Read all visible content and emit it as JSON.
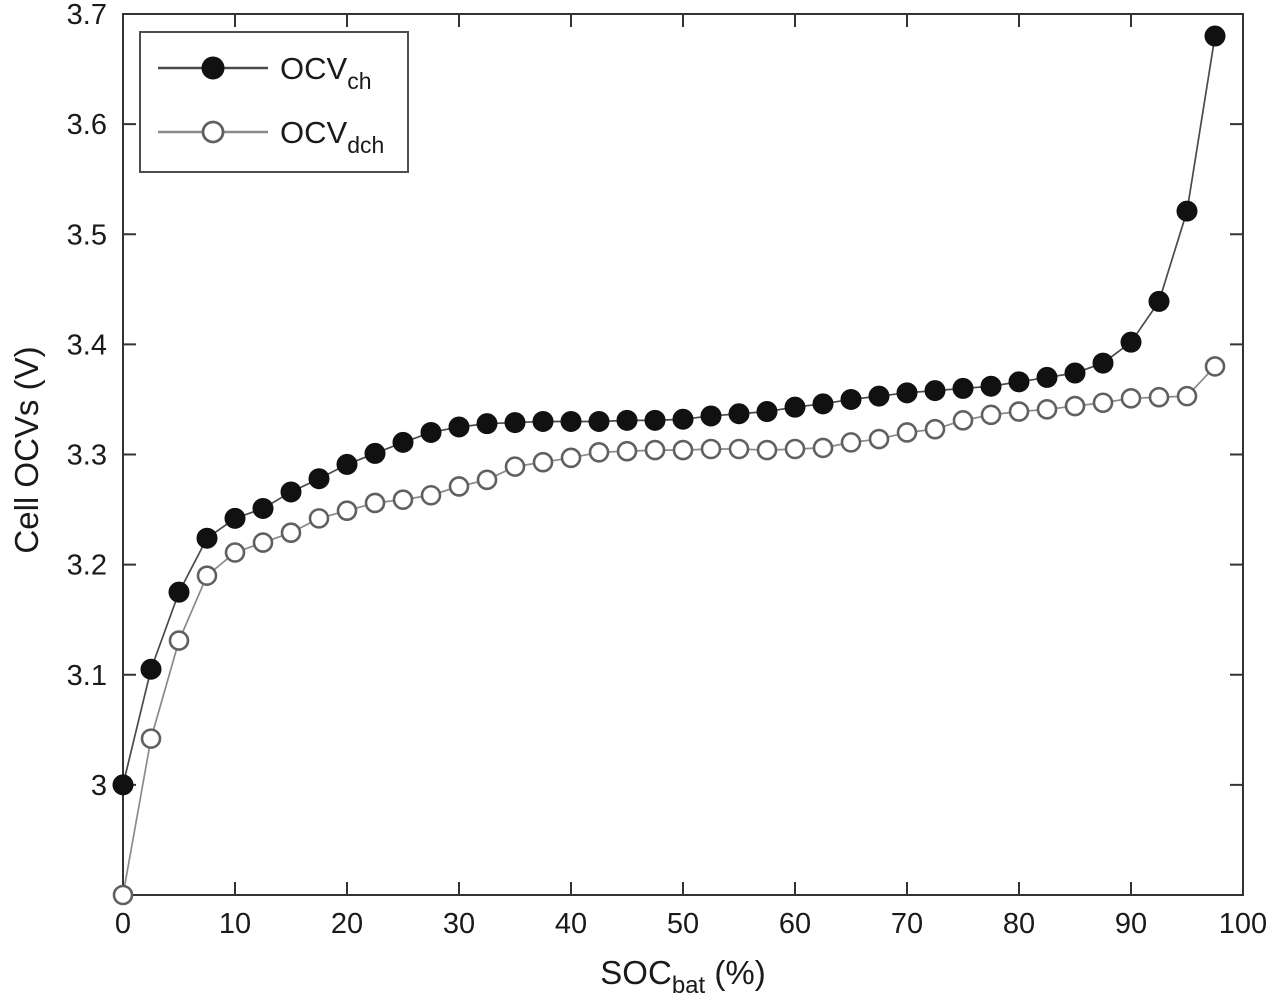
{
  "figure": {
    "background": "#ffffff",
    "axis_color": "#333333",
    "text_color": "#1a1a1a"
  },
  "chart_data": {
    "type": "line",
    "title": "",
    "xlabel": {
      "base": "SOC",
      "sub": "bat",
      "unit": " (%)"
    },
    "ylabel": "Cell OCVs (V)",
    "xlim": [
      0,
      100
    ],
    "ylim": [
      2.9,
      3.7
    ],
    "xticks": [
      0,
      10,
      20,
      30,
      40,
      50,
      60,
      70,
      80,
      90,
      100
    ],
    "yticks": [
      3.0,
      3.1,
      3.2,
      3.3,
      3.4,
      3.5,
      3.6,
      3.7
    ],
    "yticklabels": [
      "3",
      "3.1",
      "3.2",
      "3.3",
      "3.4",
      "3.5",
      "3.6",
      "3.7"
    ],
    "grid": false,
    "legend_position": "top-left",
    "x": [
      0,
      2.5,
      5,
      7.5,
      10,
      12.5,
      15,
      17.5,
      20,
      22.5,
      25,
      27.5,
      30,
      32.5,
      35,
      37.5,
      40,
      42.5,
      45,
      47.5,
      50,
      52.5,
      55,
      57.5,
      60,
      62.5,
      65,
      67.5,
      70,
      72.5,
      75,
      77.5,
      80,
      82.5,
      85,
      87.5,
      90,
      92.5,
      95,
      97.5
    ],
    "series": [
      {
        "id": "ocv-dch",
        "label_base": "OCV",
        "label_sub": "dch",
        "marker": "open-circle",
        "line_color": "#8a8a8a",
        "marker_stroke": "#606060",
        "marker_fill": "#ffffff",
        "values": [
          2.9,
          3.042,
          3.131,
          3.19,
          3.211,
          3.22,
          3.229,
          3.242,
          3.249,
          3.256,
          3.259,
          3.263,
          3.271,
          3.277,
          3.289,
          3.293,
          3.297,
          3.302,
          3.303,
          3.304,
          3.304,
          3.305,
          3.305,
          3.304,
          3.305,
          3.306,
          3.311,
          3.314,
          3.32,
          3.323,
          3.331,
          3.336,
          3.339,
          3.341,
          3.344,
          3.347,
          3.351,
          3.352,
          3.353,
          3.38
        ]
      },
      {
        "id": "ocv-ch",
        "label_base": "OCV",
        "label_sub": "ch",
        "marker": "filled-circle",
        "line_color": "#4a4a4a",
        "marker_stroke": "#111111",
        "marker_fill": "#111111",
        "values": [
          3.0,
          3.105,
          3.175,
          3.224,
          3.242,
          3.251,
          3.266,
          3.278,
          3.291,
          3.301,
          3.311,
          3.32,
          3.325,
          3.328,
          3.329,
          3.33,
          3.33,
          3.33,
          3.331,
          3.331,
          3.332,
          3.335,
          3.337,
          3.339,
          3.343,
          3.346,
          3.35,
          3.353,
          3.356,
          3.358,
          3.36,
          3.362,
          3.366,
          3.37,
          3.374,
          3.383,
          3.402,
          3.439,
          3.521,
          3.68
        ]
      }
    ],
    "legend_order": [
      "ocv-ch",
      "ocv-dch"
    ]
  }
}
